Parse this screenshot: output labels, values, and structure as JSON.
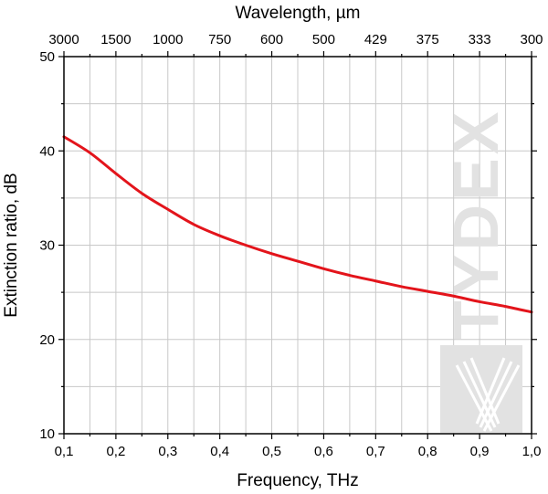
{
  "chart_data": {
    "type": "line",
    "xlabel": "Frequency, THz",
    "ylabel": "Extinction ratio, dB",
    "top_axis_label": "Wavelength, µm",
    "xlim": [
      0.1,
      1.0
    ],
    "ylim": [
      10,
      50
    ],
    "x_ticks": [
      0.1,
      0.2,
      0.3,
      0.4,
      0.5,
      0.6,
      0.7,
      0.8,
      0.9,
      1.0
    ],
    "x_tick_labels": [
      "0,1",
      "0,2",
      "0,3",
      "0,4",
      "0,5",
      "0,6",
      "0,7",
      "0,8",
      "0,9",
      "1,0"
    ],
    "y_ticks": [
      10,
      20,
      30,
      40,
      50
    ],
    "y_tick_labels": [
      "10",
      "20",
      "30",
      "40",
      "50"
    ],
    "top_ticks": [
      0.1,
      0.2,
      0.3,
      0.4,
      0.5,
      0.6,
      0.7,
      0.8,
      0.9,
      1.0
    ],
    "top_tick_labels": [
      "3000",
      "1500",
      "1000",
      "750",
      "600",
      "500",
      "429",
      "375",
      "333",
      "300"
    ],
    "grid": true,
    "series": [
      {
        "name": "Extinction ratio",
        "color": "#e3141b",
        "x": [
          0.1,
          0.15,
          0.2,
          0.25,
          0.3,
          0.35,
          0.4,
          0.45,
          0.5,
          0.55,
          0.6,
          0.65,
          0.7,
          0.75,
          0.8,
          0.85,
          0.9,
          0.95,
          1.0
        ],
        "y": [
          41.5,
          39.8,
          37.6,
          35.5,
          33.8,
          32.2,
          31.0,
          30.0,
          29.1,
          28.3,
          27.5,
          26.8,
          26.2,
          25.6,
          25.1,
          24.6,
          24.0,
          23.5,
          22.9
        ]
      }
    ]
  },
  "watermark": {
    "text": "TYDEX",
    "color": "#e2e2e2"
  }
}
